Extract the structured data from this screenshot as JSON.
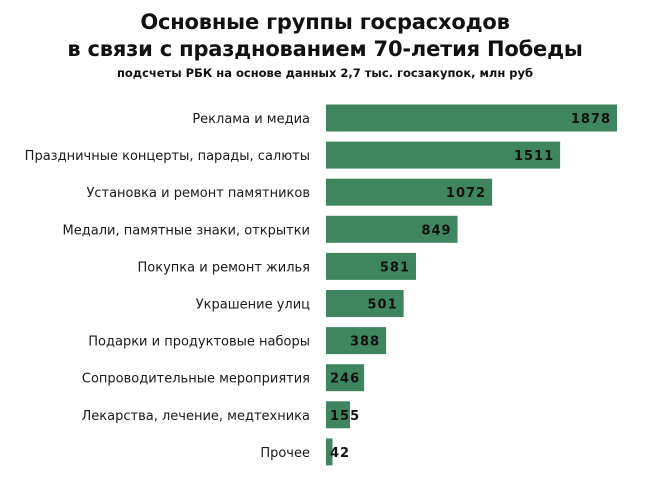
{
  "chart_data": {
    "type": "bar",
    "orientation": "horizontal",
    "title_lines": [
      "Основные группы госрасходов",
      "в связи с празднованием 70-летия Победы"
    ],
    "subtitle": "подсчеты РБК на основе данных 2,7 тыс. госзакупок, млн руб",
    "categories": [
      "Реклама и медиа",
      "Праздничные концерты, парады, салюты",
      "Установка и ремонт памятников",
      "Медали, памятные знаки, открытки",
      "Покупка и ремонт жилья",
      "Украшение улиц",
      "Подарки и продуктовые наборы",
      "Сопроводительные мероприятия",
      "Лекарства, лечение, медтехника",
      "Прочее"
    ],
    "values": [
      1878,
      1511,
      1072,
      849,
      581,
      501,
      388,
      246,
      155,
      42
    ],
    "data_labels": [
      "1878",
      "1511",
      "1072",
      "849",
      "581",
      "501",
      "388",
      "246",
      "155",
      "42"
    ],
    "bar_color": "#3f8660",
    "grid": false,
    "legend": "none"
  }
}
